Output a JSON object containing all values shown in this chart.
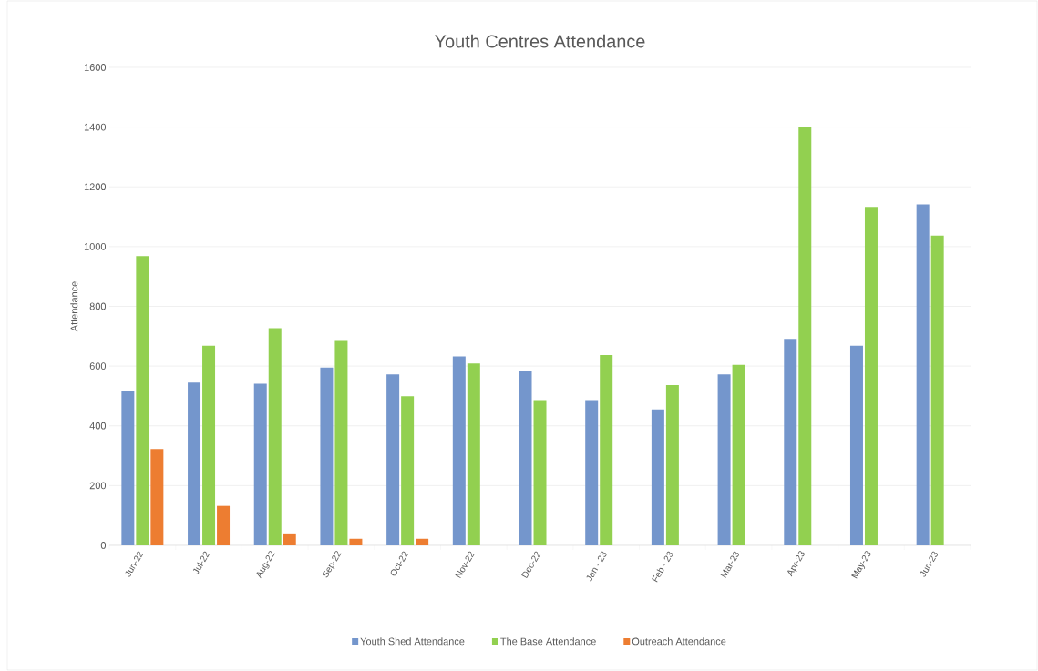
{
  "chart_data": {
    "type": "bar",
    "title": "Youth Centres Attendance",
    "ylabel": "Attendance",
    "categories": [
      "Jun-22",
      "Jul-22",
      "Aug-22",
      "Sep-22",
      "Oct-22",
      "Nov-22",
      "Dec-22",
      "Jan - 23",
      "Feb - 23",
      "Mar-23",
      "Apr-23",
      "May-23",
      "Jun-23"
    ],
    "series": [
      {
        "name": "Youth Shed Attendance",
        "color": "#7496cc",
        "values": [
          518,
          545,
          541,
          595,
          572,
          632,
          582,
          486,
          455,
          572,
          691,
          668,
          1141
        ]
      },
      {
        "name": "The Base Attendance",
        "color": "#92d050",
        "values": [
          968,
          668,
          727,
          687,
          499,
          609,
          486,
          637,
          536,
          604,
          1400,
          1133,
          1037
        ]
      },
      {
        "name": "Outreach Attendance",
        "color": "#ed7d31",
        "values": [
          322,
          132,
          40,
          22,
          22,
          null,
          null,
          null,
          null,
          null,
          null,
          null,
          null
        ]
      }
    ],
    "ylim": [
      0,
      1600
    ],
    "yticks": [
      0,
      200,
      400,
      600,
      800,
      1000,
      1200,
      1400,
      1600
    ],
    "grid": "y",
    "legend": "bottom"
  }
}
